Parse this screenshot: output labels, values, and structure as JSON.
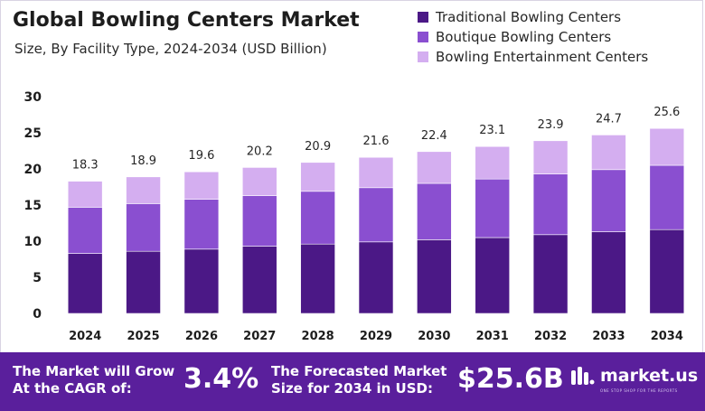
{
  "header": {
    "title": "Global Bowling Centers Market",
    "subtitle": "Size, By Facility Type, 2024-2034 (USD Billion)"
  },
  "legend": [
    {
      "label": "Traditional Bowling Centers",
      "color": "#4b1886"
    },
    {
      "label": "Boutique Bowling Centers",
      "color": "#8a4fd0"
    },
    {
      "label": "Bowling Entertainment Centers",
      "color": "#d4aef0"
    }
  ],
  "chart_data": {
    "type": "bar",
    "stacked": true,
    "categories": [
      "2024",
      "2025",
      "2026",
      "2027",
      "2028",
      "2029",
      "2030",
      "2031",
      "2032",
      "2033",
      "2034"
    ],
    "series": [
      {
        "name": "Traditional Bowling Centers",
        "values": [
          8.3,
          8.6,
          8.9,
          9.3,
          9.6,
          9.9,
          10.2,
          10.5,
          10.9,
          11.3,
          11.6
        ]
      },
      {
        "name": "Boutique Bowling Centers",
        "values": [
          6.4,
          6.6,
          6.9,
          7.0,
          7.3,
          7.5,
          7.8,
          8.1,
          8.4,
          8.6,
          8.9
        ]
      },
      {
        "name": "Bowling Entertainment Centers",
        "values": [
          3.6,
          3.7,
          3.8,
          3.9,
          4.0,
          4.2,
          4.4,
          4.5,
          4.6,
          4.8,
          5.1
        ]
      }
    ],
    "totals": [
      "18.3",
      "18.9",
      "19.6",
      "20.2",
      "20.9",
      "21.6",
      "22.4",
      "23.1",
      "23.9",
      "24.7",
      "25.6"
    ],
    "ylim": [
      0,
      30
    ],
    "yticks": [
      0,
      5,
      10,
      15,
      20,
      25,
      30
    ],
    "grid": false,
    "legend_position": "top-right"
  },
  "footer": {
    "cagr_text_line1": "The Market will Grow",
    "cagr_text_line2": "At the CAGR of:",
    "cagr_value": "3.4%",
    "forecast_text_line1": "The Forecasted Market",
    "forecast_text_line2": "Size for 2034 in USD:",
    "forecast_value": "$25.6B",
    "brand_name": "market.us",
    "brand_tagline": "ONE STOP SHOP FOR THE REPORTS",
    "color": "#5a1f9c"
  }
}
